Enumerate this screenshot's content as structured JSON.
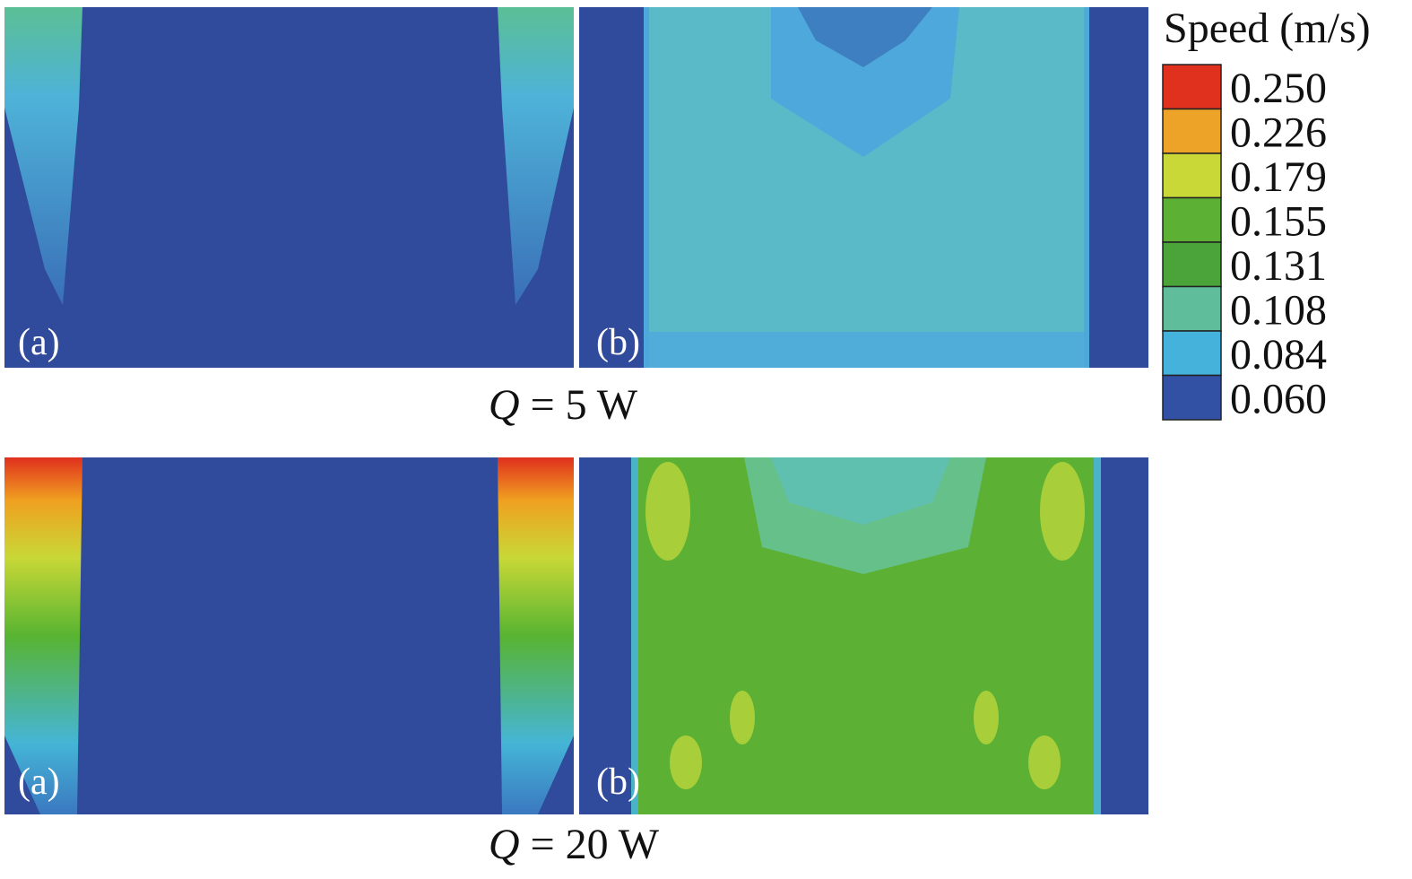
{
  "legend": {
    "title": "Speed (m/s)",
    "labels": [
      "0.250",
      "0.226",
      "0.179",
      "0.155",
      "0.131",
      "0.108",
      "0.084",
      "0.060"
    ]
  },
  "rows": [
    {
      "caption": {
        "variable": "Q",
        "rest": "= 5 W"
      },
      "panels": [
        {
          "label": "(a)"
        },
        {
          "label": "(b)"
        }
      ]
    },
    {
      "caption": {
        "variable": "Q",
        "rest": "= 20 W"
      },
      "panels": [
        {
          "label": "(a)"
        },
        {
          "label": "(b)"
        }
      ]
    }
  ]
}
